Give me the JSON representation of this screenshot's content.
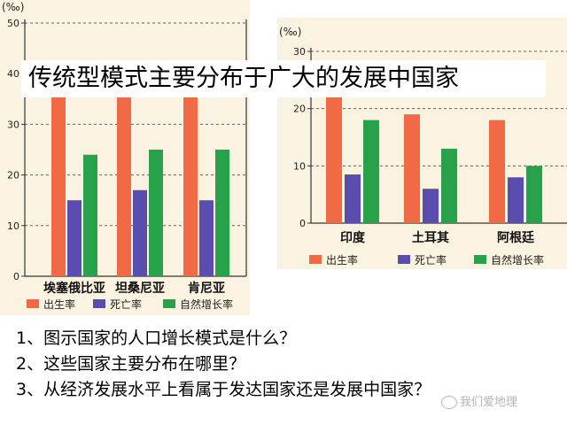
{
  "banner": "传统型模式主要分布于广大的发展中国家",
  "questions": [
    {
      "num": "1",
      "text": "、图示国家的人口增长模式是什么？"
    },
    {
      "num": "2",
      "text": "、这些国家主要分布在哪里？"
    },
    {
      "num": "3",
      "text": "、从经济发展水平上看属于发达国家还是发展中国家？"
    }
  ],
  "watermark": "我们爱地理",
  "colors": {
    "birth": "#f26a45",
    "death": "#5b4db0",
    "natural": "#27a24a",
    "panel": "#fbf3e2",
    "grid": "#666666"
  },
  "chart_data": [
    {
      "type": "bar",
      "unit": "(‰)",
      "ylim": [
        0,
        50
      ],
      "yticks": [
        0,
        10,
        20,
        30,
        40,
        50
      ],
      "grid": "dashed",
      "categories": [
        "埃塞俄比亚",
        "坦桑尼亚",
        "肯尼亚"
      ],
      "series": [
        {
          "name": "出生率",
          "color": "#f26a45",
          "values": [
            36,
            36,
            36
          ]
        },
        {
          "name": "死亡率",
          "color": "#5b4db0",
          "values": [
            15,
            17,
            15
          ]
        },
        {
          "name": "自然增长率",
          "color": "#27a24a",
          "values": [
            24,
            25,
            25
          ]
        }
      ],
      "legend_position": "bottom"
    },
    {
      "type": "bar",
      "unit": "(‰)",
      "ylim": [
        0,
        30
      ],
      "yticks": [
        0,
        10,
        20,
        30
      ],
      "grid": "dashed",
      "categories": [
        "印度",
        "土耳其",
        "阿根廷"
      ],
      "series": [
        {
          "name": "出生率",
          "color": "#f26a45",
          "values": [
            23,
            19,
            18
          ]
        },
        {
          "name": "死亡率",
          "color": "#5b4db0",
          "values": [
            8.5,
            6,
            8
          ]
        },
        {
          "name": "自然增长率",
          "color": "#27a24a",
          "values": [
            18,
            13,
            10
          ]
        }
      ],
      "legend_position": "bottom"
    }
  ]
}
